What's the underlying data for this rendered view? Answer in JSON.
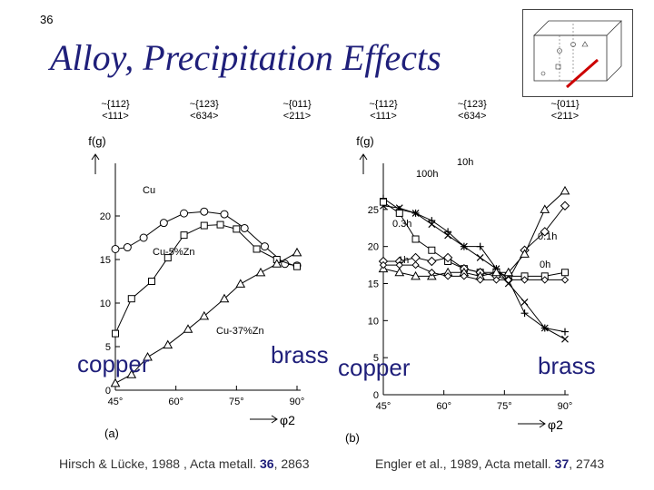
{
  "slide_number": "36",
  "title": "Alloy, Precipitation Effects",
  "left_citation": {
    "authors": "Hirsch & Lücke, 1988 , Acta metall. ",
    "volume": "36",
    "pages": ", 2863"
  },
  "right_citation": {
    "authors": "Engler et al., 1989, Acta metall. ",
    "volume": "37",
    "pages": ", 2743"
  },
  "overlay_labels": {
    "left_copper": "copper",
    "left_brass": "brass",
    "right_copper": "copper",
    "right_brass": "brass"
  },
  "colors": {
    "title": "#1f1f7a",
    "ink": "#000000",
    "arrow": "#cc0000"
  },
  "chart_data": [
    {
      "type": "line",
      "panel": "(a)",
      "ylabel": "f(g)",
      "xlabel": "φ2",
      "xlim": [
        45,
        90
      ],
      "ylim": [
        0,
        25
      ],
      "xticks": [
        45,
        60,
        75,
        90
      ],
      "xtick_labels": [
        "45°",
        "60°",
        "75°",
        "90°"
      ],
      "yticks": [
        0,
        5,
        10,
        15,
        20
      ],
      "top_labels": [
        {
          "line1": "~{112}",
          "line2": "<111>",
          "x": 45
        },
        {
          "line1": "~{123}",
          "line2": "<634>",
          "x": 67
        },
        {
          "line1": "~{011}",
          "line2": "<211>",
          "x": 90
        }
      ],
      "series": [
        {
          "name": "Cu",
          "marker": "circle",
          "x": [
            45,
            48,
            52,
            57,
            62,
            67,
            72,
            77,
            82,
            87,
            90
          ],
          "values": [
            16.2,
            16.4,
            17.5,
            19.2,
            20.3,
            20.5,
            20.2,
            18.6,
            16.5,
            14.5,
            14.3
          ]
        },
        {
          "name": "Cu-5%Zn",
          "marker": "square",
          "x": [
            45,
            49,
            54,
            58,
            62,
            67,
            71,
            75,
            80,
            85,
            90
          ],
          "values": [
            6.5,
            10.5,
            12.5,
            15.2,
            17.8,
            18.9,
            19.0,
            18.5,
            16.2,
            15.0,
            14.2
          ]
        },
        {
          "name": "Cu-37%Zn",
          "marker": "triangle",
          "x": [
            45,
            49,
            53,
            58,
            63,
            67,
            72,
            76,
            81,
            85,
            90
          ],
          "values": [
            0.8,
            1.8,
            3.8,
            5.2,
            7.0,
            8.5,
            10.5,
            12.2,
            13.5,
            14.5,
            15.8
          ]
        }
      ],
      "curve_labels": [
        "Cu",
        "Cu-5%Zn",
        "Cu-37%Zn"
      ]
    },
    {
      "type": "line",
      "panel": "(b)",
      "ylabel": "f(g)",
      "xlabel": "φ2",
      "xlim": [
        45,
        90
      ],
      "ylim": [
        0,
        30
      ],
      "xticks": [
        45,
        60,
        75,
        90
      ],
      "xtick_labels": [
        "45°",
        "60°",
        "75°",
        "90°"
      ],
      "yticks": [
        0,
        5,
        10,
        15,
        20,
        25
      ],
      "top_labels": [
        {
          "line1": "~{112}",
          "line2": "<111>",
          "x": 45
        },
        {
          "line1": "~{123}",
          "line2": "<634>",
          "x": 67
        },
        {
          "line1": "~{011}",
          "line2": "<211>",
          "x": 90
        }
      ],
      "series": [
        {
          "name": "10h",
          "marker": "plus",
          "x": [
            45,
            49,
            53,
            57,
            61,
            65,
            69,
            73,
            76,
            80,
            85,
            90
          ],
          "values": [
            26.5,
            25.0,
            24.5,
            23.5,
            22.0,
            20.0,
            20.0,
            17.0,
            15.5,
            11.0,
            9.0,
            8.5
          ]
        },
        {
          "name": "100h",
          "marker": "x",
          "x": [
            45,
            49,
            53,
            57,
            61,
            65,
            69,
            73,
            76,
            80,
            85,
            90
          ],
          "values": [
            25.5,
            25.2,
            24.5,
            23.0,
            21.5,
            20.0,
            18.5,
            17.0,
            15.0,
            12.5,
            9.0,
            7.5
          ]
        },
        {
          "name": "0.3h",
          "marker": "square",
          "x": [
            45,
            49,
            53,
            57,
            61,
            65,
            69,
            73,
            76,
            80,
            85,
            90
          ],
          "values": [
            26.0,
            24.5,
            21.0,
            19.5,
            18.0,
            17.0,
            16.5,
            16.5,
            16.0,
            16.0,
            16.0,
            16.5
          ]
        },
        {
          "name": "1h",
          "marker": "diamond",
          "x": [
            45,
            49,
            53,
            57,
            61,
            65,
            69,
            73,
            76,
            80,
            85,
            90
          ],
          "values": [
            18.0,
            18.0,
            18.5,
            18.0,
            18.5,
            17.0,
            16.5,
            16.0,
            15.5,
            19.5,
            22.0,
            25.5
          ]
        },
        {
          "name": "0.1h",
          "marker": "triangle",
          "x": [
            45,
            49,
            53,
            57,
            61,
            65,
            69,
            73,
            76,
            80,
            85,
            90
          ],
          "values": [
            17.0,
            16.5,
            16.0,
            16.0,
            16.5,
            16.5,
            16.0,
            16.5,
            16.5,
            19.0,
            25.0,
            27.5
          ]
        },
        {
          "name": "0h",
          "marker": "diamond-small",
          "x": [
            45,
            49,
            53,
            57,
            61,
            65,
            69,
            73,
            76,
            80,
            85,
            90
          ],
          "values": [
            17.5,
            17.5,
            17.5,
            16.5,
            16.0,
            16.0,
            15.5,
            15.5,
            15.5,
            15.5,
            15.5,
            15.5
          ]
        }
      ],
      "curve_labels": [
        "10h",
        "100h",
        "0.3h",
        "1h",
        "0.1h",
        "0h"
      ]
    }
  ]
}
